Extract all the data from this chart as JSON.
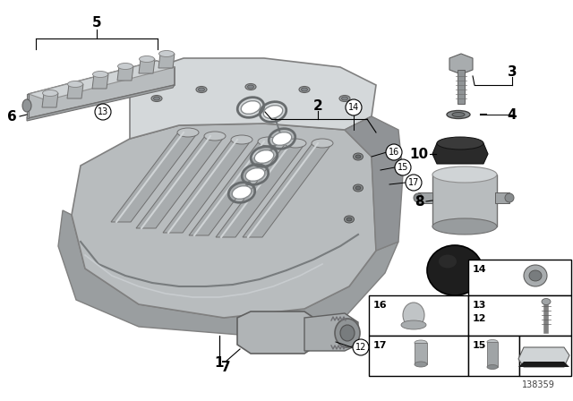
{
  "bg_color": "#ffffff",
  "part_number": "138359",
  "fig_w": 6.4,
  "fig_h": 4.48,
  "dpi": 100,
  "manifold_color": "#b8bcbe",
  "manifold_dark": "#909396",
  "manifold_light": "#d4d8da",
  "rail_color": "#b0b4b6",
  "gasket_color": "#a0a4a6",
  "label_color": "#000000",
  "box_outline": "#000000",
  "callout_line_color": "#000000"
}
